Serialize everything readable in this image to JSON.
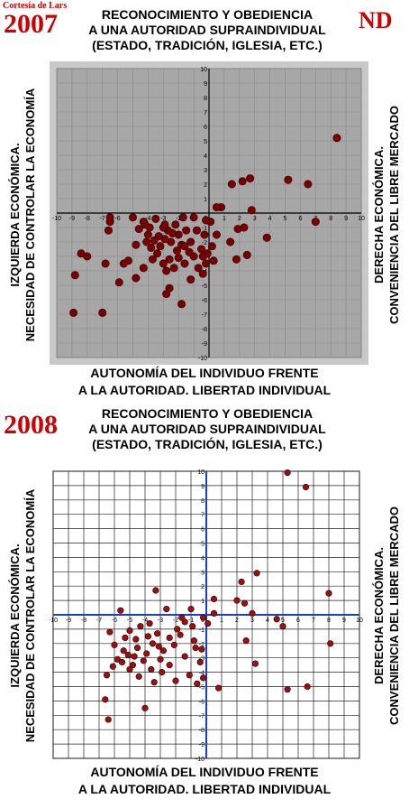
{
  "credit": "Cortesía de Lars",
  "corner_label": "ND",
  "chart_data": [
    {
      "type": "scatter",
      "year": "2007",
      "title_lines": [
        "RECONOCIMIENTO Y OBEDIENCIA",
        "A UNA AUTORIDAD SUPRAINDIVIDUAL",
        "(ESTADO, TRADICIÓN, IGLESIA, ETC.)"
      ],
      "xlabel_lines": [
        "AUTONOMÍA DEL INDIVIDUO FRENTE",
        "A LA AUTORIDAD. LIBERTAD INDIVIDUAL"
      ],
      "left_label_lines": [
        "IZQUIERDA ECONÓMICA.",
        "NECESIDAD DE CONTROLAR LA ECONOMÍA"
      ],
      "right_label_lines": [
        "DERECHA ECONÓMICA.",
        "CONVENIENCIA DEL LIBRE MERCADO"
      ],
      "xlim": [
        -10,
        10
      ],
      "ylim": [
        -10,
        10
      ],
      "grid": true,
      "point_color": "#7a0000",
      "points": [
        [
          8.4,
          5.2
        ],
        [
          6.5,
          2.0
        ],
        [
          5.2,
          2.3
        ],
        [
          2.7,
          2.4
        ],
        [
          2.2,
          2.2
        ],
        [
          1.5,
          2.0
        ],
        [
          0.8,
          0.4
        ],
        [
          0.5,
          0.4
        ],
        [
          0.1,
          -0.6
        ],
        [
          -0.2,
          -0.5
        ],
        [
          7.0,
          -0.6
        ],
        [
          2.8,
          0.2
        ],
        [
          2.3,
          -1.0
        ],
        [
          1.9,
          -1.1
        ],
        [
          1.4,
          -2.0
        ],
        [
          3.8,
          -1.7
        ],
        [
          2.5,
          -2.9
        ],
        [
          1.8,
          -3.2
        ],
        [
          0.5,
          -1.5
        ],
        [
          0.2,
          -2.3
        ],
        [
          -0.3,
          -1.5
        ],
        [
          -0.8,
          -1.2
        ],
        [
          -0.5,
          -2.5
        ],
        [
          -1.2,
          -2.0
        ],
        [
          -1.5,
          -1.2
        ],
        [
          -1.8,
          -2.2
        ],
        [
          -2.0,
          -1.5
        ],
        [
          -2.2,
          -0.8
        ],
        [
          -2.4,
          -1.4
        ],
        [
          -2.5,
          -2.0
        ],
        [
          -2.7,
          -1.2
        ],
        [
          -2.9,
          -1.8
        ],
        [
          -3.0,
          -1.0
        ],
        [
          -3.2,
          -2.3
        ],
        [
          -3.3,
          -1.6
        ],
        [
          -3.4,
          -2.8
        ],
        [
          -3.6,
          -1.9
        ],
        [
          -3.8,
          -2.4
        ],
        [
          -4.0,
          -1.5
        ],
        [
          -4.1,
          -2.0
        ],
        [
          -4.3,
          -0.6
        ],
        [
          -4.6,
          -1.1
        ],
        [
          -4.8,
          -2.2
        ],
        [
          -5.0,
          -0.3
        ],
        [
          -1.0,
          -3.0
        ],
        [
          -1.3,
          -2.7
        ],
        [
          -1.6,
          -3.5
        ],
        [
          -2.0,
          -3.1
        ],
        [
          -2.3,
          -3.8
        ],
        [
          -2.6,
          -3.2
        ],
        [
          -2.8,
          -4.0
        ],
        [
          -3.0,
          -3.5
        ],
        [
          -0.7,
          -3.8
        ],
        [
          -0.2,
          -3.5
        ],
        [
          0.3,
          -3.3
        ],
        [
          -2.6,
          -5.2
        ],
        [
          -2.8,
          -5.6
        ],
        [
          -1.8,
          -6.3
        ],
        [
          -4.3,
          -3.8
        ],
        [
          -4.8,
          -4.5
        ],
        [
          -5.3,
          -3.3
        ],
        [
          -5.9,
          -4.8
        ],
        [
          -5.6,
          -3.5
        ],
        [
          -6.6,
          -1.2
        ],
        [
          -8.0,
          -3.0
        ],
        [
          -8.4,
          -2.8
        ],
        [
          -8.8,
          -4.3
        ],
        [
          -8.9,
          -6.9
        ],
        [
          -7.0,
          -6.9
        ],
        [
          -6.8,
          -3.5
        ],
        [
          -6.5,
          -0.6
        ],
        [
          -1.6,
          -2.3
        ],
        [
          -2.1,
          -2.6
        ],
        [
          -3.5,
          -0.4
        ],
        [
          -1.0,
          -0.3
        ],
        [
          -0.1,
          -2.8
        ],
        [
          -0.4,
          -3.0
        ],
        [
          -1.2,
          -4.6
        ],
        [
          -0.4,
          -4.2
        ],
        [
          -3.7,
          -3.2
        ],
        [
          -2.9,
          -0.8
        ],
        [
          -1.7,
          -0.3
        ],
        [
          -6.5,
          -0.3
        ],
        [
          -4.2,
          -0.8
        ],
        [
          -3.9,
          -1.0
        ]
      ]
    },
    {
      "type": "scatter",
      "year": "2008",
      "title_lines": [
        "RECONOCIMIENTO Y OBEDIENCIA",
        "A UNA AUTORIDAD SUPRAINDIVIDUAL",
        "(ESTADO, TRADICIÓN, IGLESIA, ETC.)"
      ],
      "xlabel_lines": [
        "AUTONOMÍA DEL INDIVIDUO FRENTE",
        "A LA AUTORIDAD. LIBERTAD INDIVIDUAL"
      ],
      "left_label_lines": [
        "IZQUIERDA ECONÓMICA.",
        "NECESIDAD DE CONTROLAR LA ECONOMÍA"
      ],
      "right_label_lines": [
        "DERECHA ECONÓMICA.",
        "CONVENIENCIA DEL LIBRE MERCADO"
      ],
      "xlim": [
        -10,
        10
      ],
      "ylim": [
        -10,
        10
      ],
      "grid": true,
      "point_color": "#9b1010",
      "points": [
        [
          5.3,
          9.9
        ],
        [
          6.5,
          8.9
        ],
        [
          3.3,
          2.9
        ],
        [
          2.3,
          2.3
        ],
        [
          2.0,
          1.0
        ],
        [
          2.5,
          0.8
        ],
        [
          0.5,
          1.1
        ],
        [
          8.0,
          1.5
        ],
        [
          0.1,
          -0.6
        ],
        [
          0.5,
          0.1
        ],
        [
          -0.2,
          -0.2
        ],
        [
          3.0,
          0.1
        ],
        [
          3.2,
          -3.4
        ],
        [
          2.6,
          -1.8
        ],
        [
          4.6,
          -0.3
        ],
        [
          5.0,
          -0.8
        ],
        [
          8.1,
          -2.0
        ],
        [
          5.3,
          -5.2
        ],
        [
          6.6,
          -5.0
        ],
        [
          0.8,
          -5.1
        ],
        [
          -0.6,
          -4.8
        ],
        [
          -0.2,
          -4.4
        ],
        [
          -0.4,
          -3.3
        ],
        [
          -0.7,
          -2.3
        ],
        [
          -0.9,
          -0.8
        ],
        [
          -1.0,
          0.4
        ],
        [
          -1.4,
          -0.5
        ],
        [
          -1.7,
          -1.4
        ],
        [
          -1.9,
          -1.0
        ],
        [
          -2.1,
          -2.1
        ],
        [
          -2.4,
          -1.6
        ],
        [
          -2.6,
          0.4
        ],
        [
          -2.8,
          -2.5
        ],
        [
          -3.0,
          -3.1
        ],
        [
          -3.2,
          -1.3
        ],
        [
          -3.3,
          1.7
        ],
        [
          -3.5,
          -2.0
        ],
        [
          -3.6,
          -3.8
        ],
        [
          -3.8,
          -1.5
        ],
        [
          -3.9,
          -2.7
        ],
        [
          -4.1,
          -3.2
        ],
        [
          -4.3,
          -0.8
        ],
        [
          -4.5,
          -2.3
        ],
        [
          -4.6,
          -1.7
        ],
        [
          -4.8,
          -3.5
        ],
        [
          -5.0,
          -1.1
        ],
        [
          -5.1,
          -2.8
        ],
        [
          -5.3,
          -1.6
        ],
        [
          -5.4,
          -2.5
        ],
        [
          -5.6,
          0.3
        ],
        [
          -5.8,
          -3.1
        ],
        [
          -6.0,
          -2.1
        ],
        [
          -6.1,
          -3.6
        ],
        [
          -6.3,
          -1.2
        ],
        [
          -6.5,
          -4.2
        ],
        [
          -6.6,
          -5.9
        ],
        [
          -6.4,
          -7.3
        ],
        [
          -4.0,
          -6.5
        ],
        [
          -1.1,
          -4.2
        ],
        [
          -1.4,
          -2.9
        ],
        [
          -2.4,
          -3.5
        ],
        [
          -2.9,
          -4.0
        ],
        [
          -3.4,
          -4.7
        ],
        [
          -3.7,
          -0.6
        ],
        [
          -4.4,
          -4.3
        ],
        [
          -5.5,
          -3.3
        ],
        [
          -1.6,
          -0.2
        ],
        [
          -0.8,
          -1.8
        ],
        [
          -0.3,
          -2.4
        ],
        [
          -2.0,
          -4.6
        ],
        [
          -5.0,
          -3.8
        ],
        [
          -3.1,
          -2.2
        ],
        [
          -4.7,
          -2.9
        ]
      ]
    }
  ]
}
